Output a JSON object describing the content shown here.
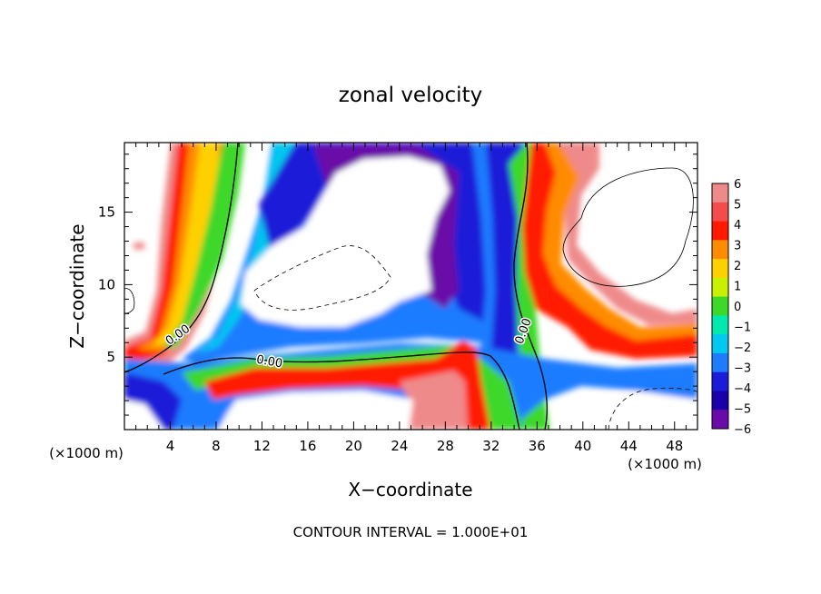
{
  "chart_data": {
    "type": "heatmap",
    "title": "zonal velocity",
    "xlabel": "X−coordinate",
    "ylabel": "Z−coordinate",
    "x_unit_left": "(×1000 m)",
    "x_unit_right": "(×1000 m)",
    "x_ticks": [
      4,
      8,
      12,
      16,
      20,
      24,
      28,
      32,
      36,
      40,
      44,
      48
    ],
    "y_ticks": [
      5,
      10,
      15
    ],
    "xlim": [
      0,
      50
    ],
    "ylim": [
      0,
      19.8
    ],
    "colorbar": {
      "ticks": [
        6,
        5,
        4,
        3,
        2,
        1,
        0,
        -1,
        -2,
        -3,
        -4,
        -5,
        -6
      ],
      "tick_labels": [
        "6",
        "5",
        "4",
        "3",
        "2",
        "1",
        "0",
        "−1",
        "−2",
        "−3",
        "−4",
        "−5",
        "−6"
      ],
      "colors": [
        "#ef8a8a",
        "#f44b4b",
        "#ff1a00",
        "#ff8c00",
        "#ffd000",
        "#c8f000",
        "#3cd82a",
        "#00e8b0",
        "#00c8f0",
        "#1e7cff",
        "#1c1cd8",
        "#1a00a8",
        "#6a0aa8"
      ]
    },
    "contour_labels": [
      "0.00",
      "0.00",
      "0.00"
    ],
    "contour_interval_text": "CONTOUR INTERVAL = 1.000E+01"
  }
}
